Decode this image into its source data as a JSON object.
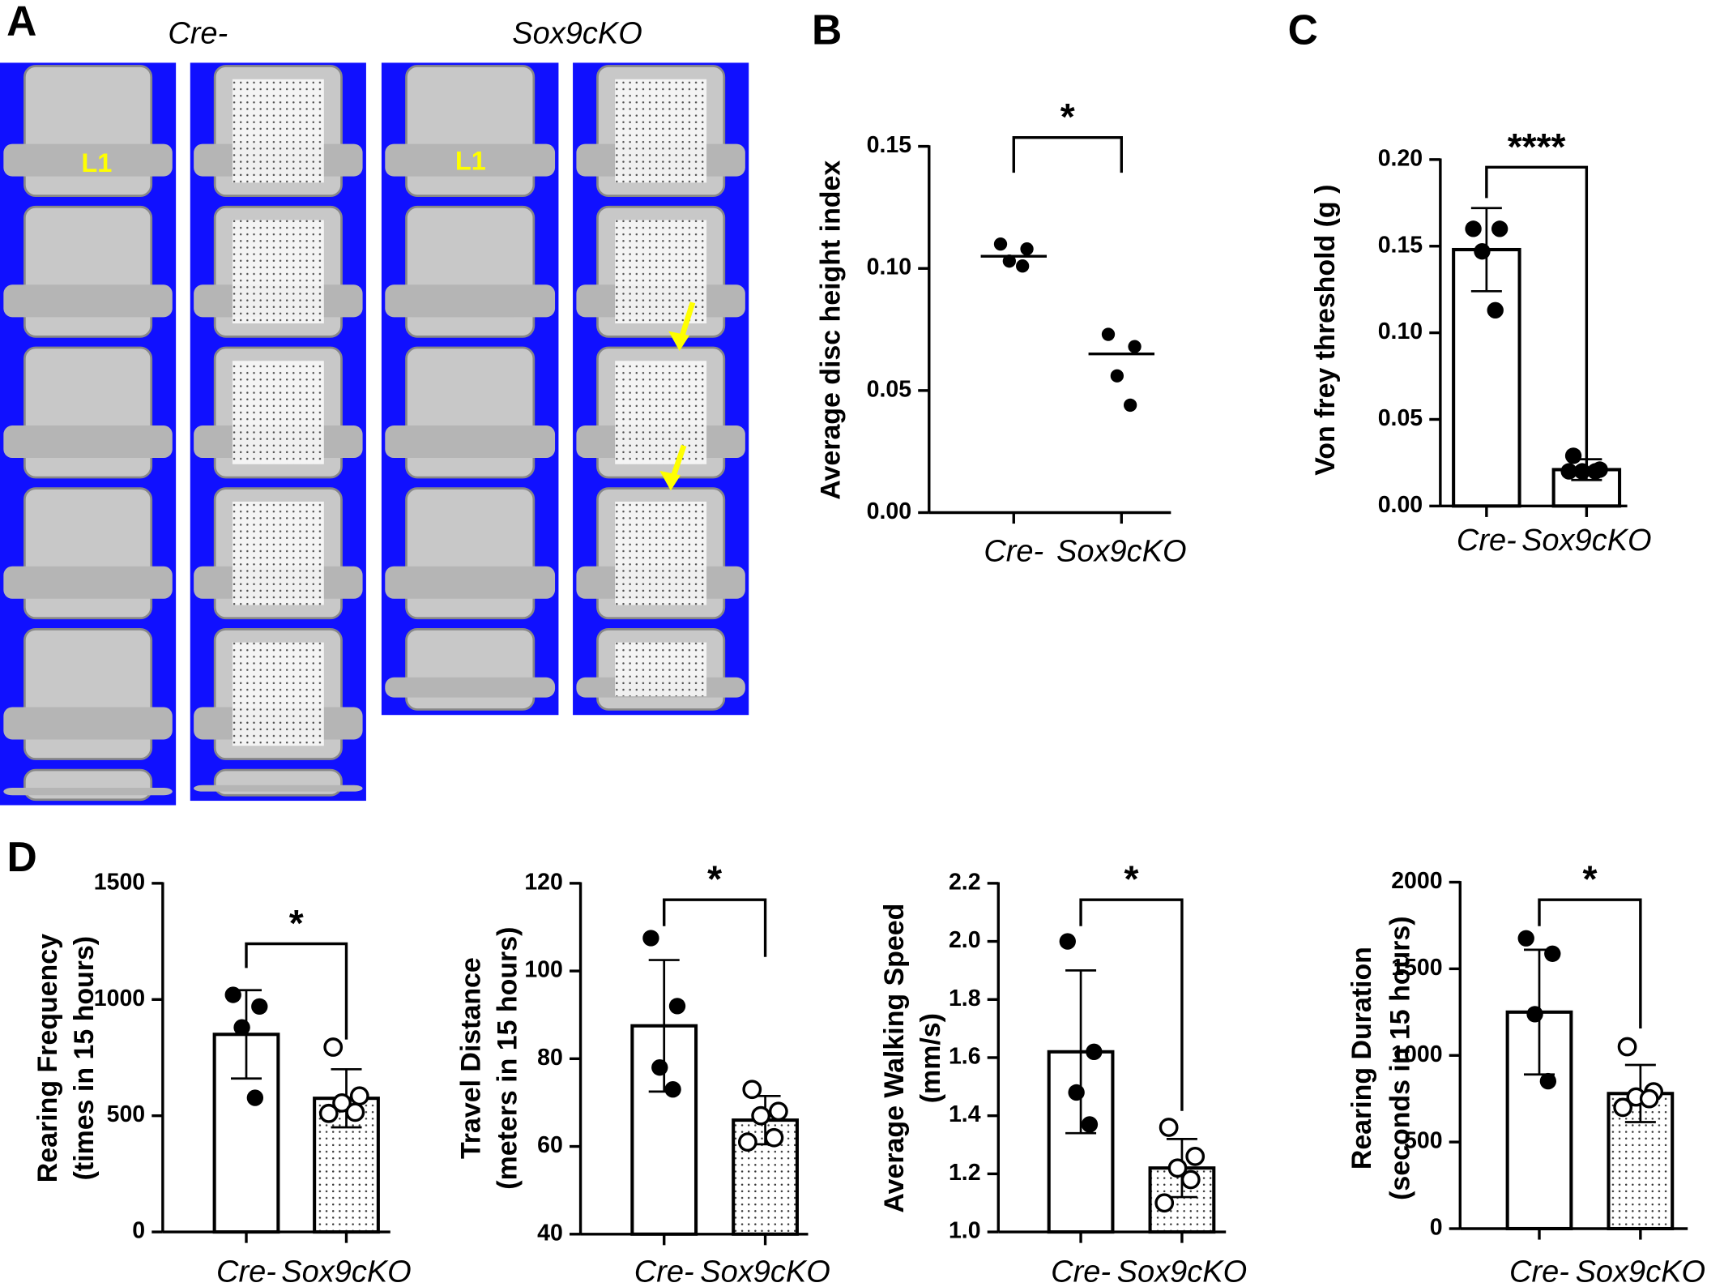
{
  "figure_a": {
    "panel": "A",
    "labels": [
      "Cre-",
      "Sox9cKO"
    ],
    "annotations": [
      "L1",
      "L1"
    ]
  },
  "chart_data": [
    {
      "type": "dot",
      "panel": "B",
      "ylabel": [
        "Average disc height index"
      ],
      "categories": [
        "Cre-",
        "Sox9cKO"
      ],
      "values": [
        0.105,
        0.065
      ],
      "points": [
        [
          0.11,
          0.108,
          0.103,
          0.101
        ],
        [
          0.073,
          0.068,
          0.056,
          0.044
        ]
      ],
      "ylim": [
        0,
        0.15
      ],
      "yticks": [
        {
          "value": 0,
          "label": "0.00"
        },
        0.05,
        {
          "value": 0.1,
          "label": "0.10"
        },
        0.15
      ],
      "significance": "*",
      "point_styles": [
        "filled",
        "filled"
      ],
      "color": "#000000"
    },
    {
      "type": "bar",
      "panel": "C",
      "ylabel": [
        "Von frey threshold (g )"
      ],
      "categories": [
        "Cre-",
        "Sox9cKO"
      ],
      "values": [
        0.148,
        0.021
      ],
      "errors": [
        0.024,
        0.006
      ],
      "points": [
        [
          0.16,
          0.16,
          0.147,
          0.113
        ],
        [
          0.029,
          0.021,
          0.02,
          0.02,
          0.02
        ]
      ],
      "ylim": [
        0,
        0.2
      ],
      "yticks": [
        {
          "value": 0,
          "label": "0.00"
        },
        0.05,
        {
          "value": 0.1,
          "label": "0.10"
        },
        0.15,
        {
          "value": 0.2,
          "label": "0.20"
        }
      ],
      "significance": "****",
      "point_styles": [
        "filled",
        "filled"
      ],
      "bar_patterns": [
        "none",
        "none"
      ],
      "color": "#000000"
    },
    {
      "type": "bar",
      "panel": "D",
      "ylabel": [
        "Rearing Frequency",
        "(times in 15 hours)"
      ],
      "categories": [
        "Cre-",
        "Sox9cKO"
      ],
      "values": [
        850,
        575
      ],
      "errors": [
        190,
        125
      ],
      "points": [
        [
          1020,
          970,
          880,
          577
        ],
        [
          795,
          585,
          555,
          515,
          510
        ]
      ],
      "ylim": [
        0,
        1500
      ],
      "yticks": [
        0,
        500,
        1000,
        1500
      ],
      "significance": "*",
      "point_styles": [
        "filled",
        "open"
      ],
      "bar_patterns": [
        "none",
        "dots"
      ],
      "color": "#000000"
    },
    {
      "type": "bar",
      "ylabel": [
        "Travel Distance",
        "(meters in 15 hours)"
      ],
      "categories": [
        "Cre-",
        "Sox9cKO"
      ],
      "values": [
        87.5,
        66
      ],
      "errors": [
        15,
        5.5
      ],
      "points": [
        [
          107.5,
          92,
          78,
          73
        ],
        [
          73,
          68,
          67,
          62,
          61
        ]
      ],
      "ylim": [
        40,
        120
      ],
      "yticks": [
        40,
        60,
        80,
        100,
        120
      ],
      "significance": "*",
      "point_styles": [
        "filled",
        "open"
      ],
      "bar_patterns": [
        "none",
        "dots"
      ],
      "color": "#000000"
    },
    {
      "type": "bar",
      "ylabel": [
        "Average Walking Speed",
        "(mm/s)"
      ],
      "categories": [
        "Cre-",
        "Sox9cKO"
      ],
      "values": [
        1.62,
        1.22
      ],
      "errors": [
        0.28,
        0.1
      ],
      "points": [
        [
          2.0,
          1.62,
          1.48,
          1.37
        ],
        [
          1.36,
          1.26,
          1.22,
          1.18,
          1.1
        ]
      ],
      "ylim": [
        1.0,
        2.2
      ],
      "yticks": [
        {
          "value": 1.0,
          "label": "1.0"
        },
        1.2,
        1.4,
        1.6,
        1.8,
        {
          "value": 2.0,
          "label": "2.0"
        },
        2.2
      ],
      "significance": "*",
      "point_styles": [
        "filled",
        "open"
      ],
      "bar_patterns": [
        "none",
        "dots"
      ],
      "color": "#000000"
    },
    {
      "type": "bar",
      "ylabel": [
        "Rearing Duration",
        "(seconds in 15 hours)"
      ],
      "categories": [
        "Cre-",
        "Sox9cKO"
      ],
      "values": [
        1250,
        780
      ],
      "errors": [
        360,
        165
      ],
      "points": [
        [
          1676,
          1587,
          1238,
          851
        ],
        [
          1050,
          790,
          760,
          750,
          700
        ]
      ],
      "ylim": [
        0,
        2000
      ],
      "yticks": [
        0,
        500,
        1000,
        1500,
        2000
      ],
      "significance": "*",
      "point_styles": [
        "filled",
        "open"
      ],
      "bar_patterns": [
        "none",
        "dots"
      ],
      "color": "#000000"
    }
  ]
}
